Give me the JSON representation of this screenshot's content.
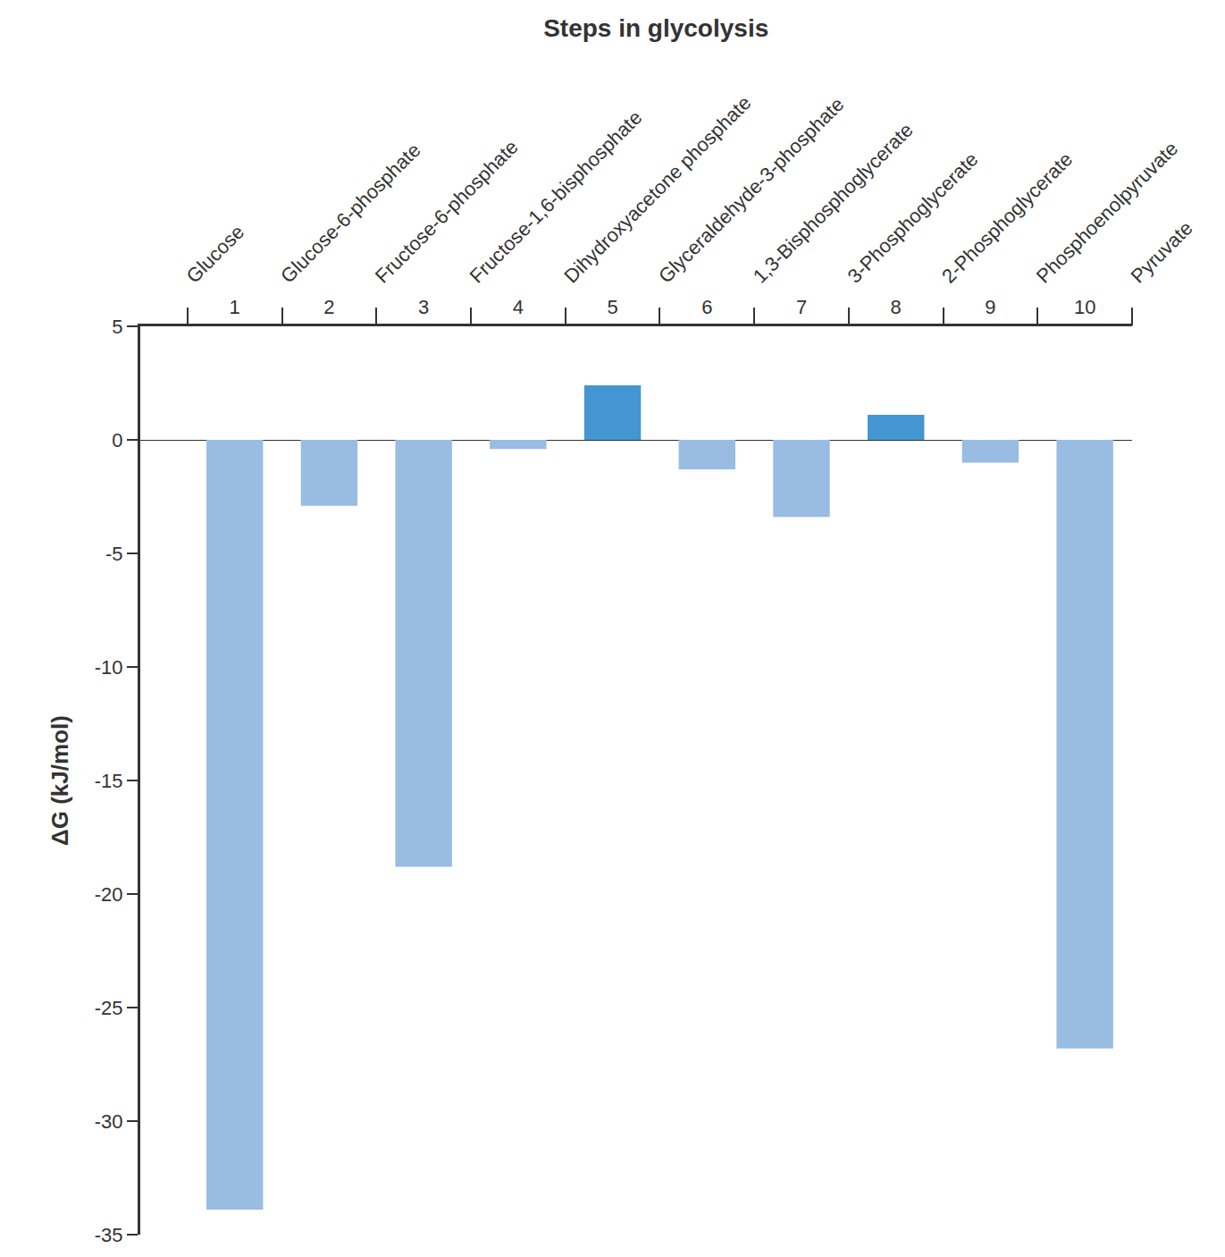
{
  "chart_data": {
    "type": "bar",
    "title": "Steps in glycolysis",
    "y_label": "ΔG (kJ/mol)",
    "x": [
      1,
      2,
      3,
      4,
      5,
      6,
      7,
      8,
      9,
      10
    ],
    "values": [
      -33.9,
      -2.9,
      -18.8,
      -0.4,
      2.4,
      -1.3,
      -3.4,
      1.1,
      -1.0,
      -26.8
    ],
    "colors": [
      "#99bce3",
      "#99bce3",
      "#99bce3",
      "#99bce3",
      "#4396d1",
      "#99bce3",
      "#99bce3",
      "#4396d1",
      "#99bce3",
      "#99bce3"
    ],
    "xlim": [
      0,
      10.5
    ],
    "xticks": [
      1,
      2,
      3,
      4,
      5,
      6,
      7,
      8,
      9,
      10
    ],
    "x2lim": [
      0,
      10.5
    ],
    "x2ticks": [
      {
        "value": 0.5,
        "label": "Glucose"
      },
      {
        "value": 1.5,
        "label": "Glucose-6-phosphate"
      },
      {
        "value": 2.5,
        "label": "Fructose-6-phosphate"
      },
      {
        "value": 3.5,
        "label": "Fructose-1,6-bisphosphate"
      },
      {
        "value": 4.5,
        "label": "Dihydroxyacetone phosphate"
      },
      {
        "value": 5.5,
        "label": "Glyceraldehyde-3-phosphate"
      },
      {
        "value": 6.5,
        "label": "1,3-Bisphosphoglycerate"
      },
      {
        "value": 7.5,
        "label": "3-Phosphoglycerate"
      },
      {
        "value": 8.5,
        "label": "2-Phosphoglycerate"
      },
      {
        "value": 9.5,
        "label": "Phosphoenolpyruvate"
      },
      {
        "value": 10.5,
        "label": "Pyruvate"
      }
    ],
    "ylim": [
      -35,
      5
    ],
    "yticks": [
      5,
      0,
      -5,
      -10,
      -15,
      -20,
      -25,
      -30,
      -35
    ],
    "grid": false
  }
}
